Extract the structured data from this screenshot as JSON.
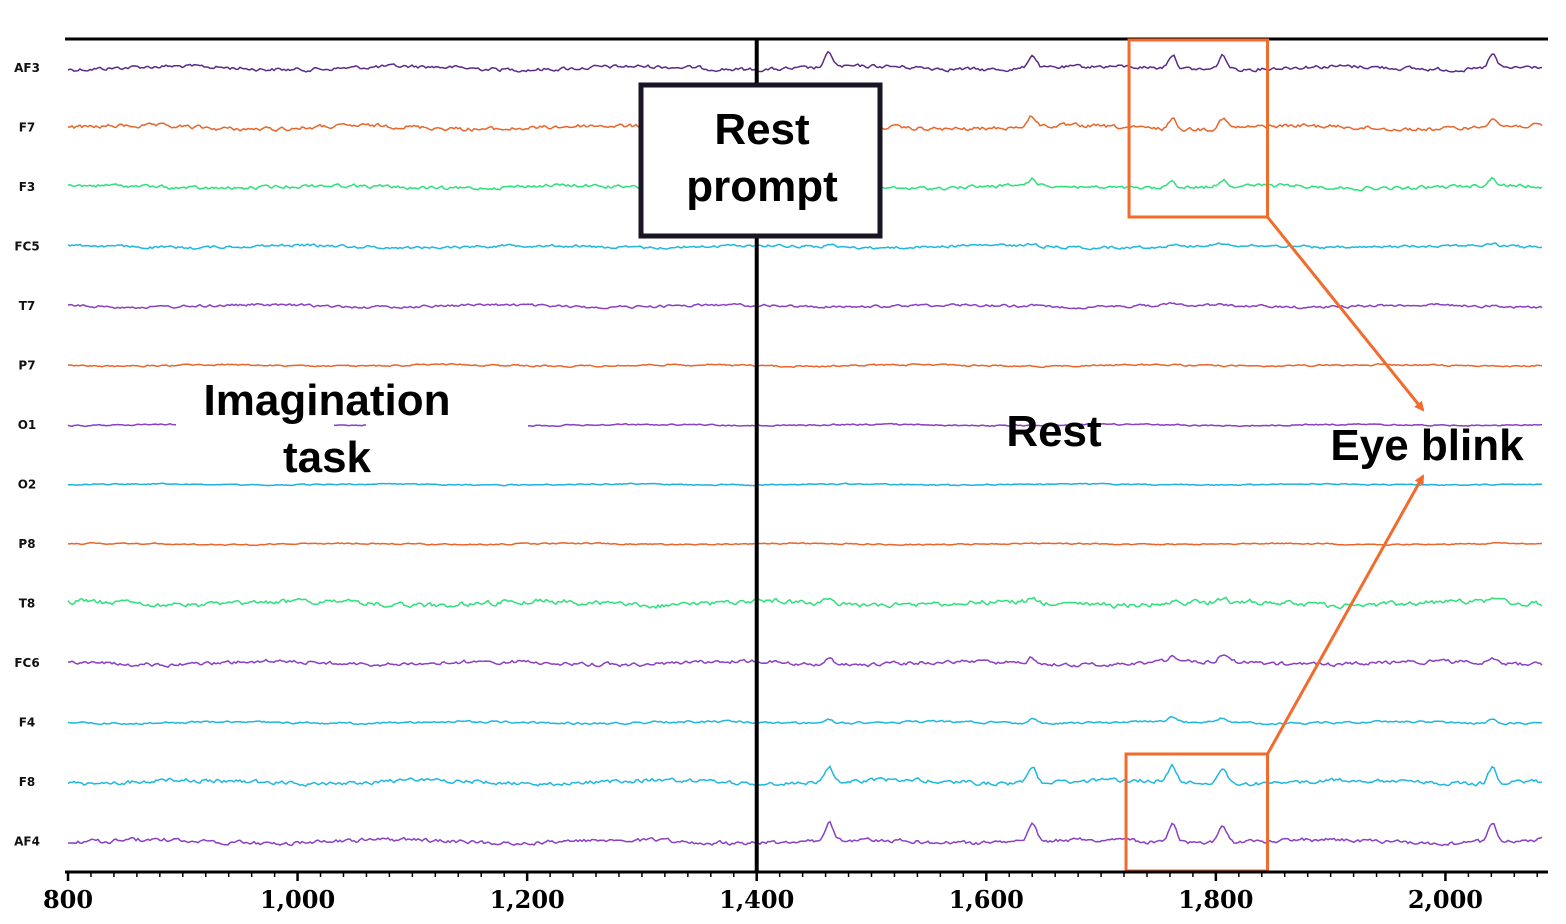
{
  "chart_data": {
    "type": "line",
    "xlim": [
      800,
      2085
    ],
    "x_ticks": [
      800,
      1000,
      1200,
      1400,
      1600,
      1800,
      2000
    ],
    "x_tick_labels": [
      "800",
      "1,000",
      "1,200",
      "1,400",
      "1,600",
      "1,800",
      "2,000"
    ],
    "grid": false,
    "series": [
      {
        "name": "AF3",
        "color": "#5b2a86"
      },
      {
        "name": "F7",
        "color": "#e8662a"
      },
      {
        "name": "F3",
        "color": "#2ee07a"
      },
      {
        "name": "FC5",
        "color": "#1fb8dd"
      },
      {
        "name": "T7",
        "color": "#8a3fc4"
      },
      {
        "name": "P7",
        "color": "#e8662a"
      },
      {
        "name": "O1",
        "color": "#8a3fc4"
      },
      {
        "name": "O2",
        "color": "#1fb0dd"
      },
      {
        "name": "P8",
        "color": "#e8662a"
      },
      {
        "name": "T8",
        "color": "#2ee07a"
      },
      {
        "name": "FC6",
        "color": "#8a3fc4"
      },
      {
        "name": "F4",
        "color": "#1fb8dd"
      },
      {
        "name": "F8",
        "color": "#1fb8dd"
      },
      {
        "name": "AF4",
        "color": "#8a3fc4"
      }
    ],
    "event_marker": {
      "x": 1400,
      "label_lines": [
        "Rest",
        "prompt"
      ]
    },
    "annotations": {
      "task_lines": [
        "Imagination",
        "task"
      ],
      "rest": "Rest",
      "blink": "Eye blink"
    },
    "blink_windows": [
      {
        "x_range": [
          1720,
          1845
        ],
        "channels": [
          "AF3",
          "F7",
          "F3"
        ]
      },
      {
        "x_range": [
          1720,
          1845
        ],
        "channels": [
          "F8",
          "AF4"
        ]
      }
    ],
    "highlight_color": "#f26b2d"
  }
}
